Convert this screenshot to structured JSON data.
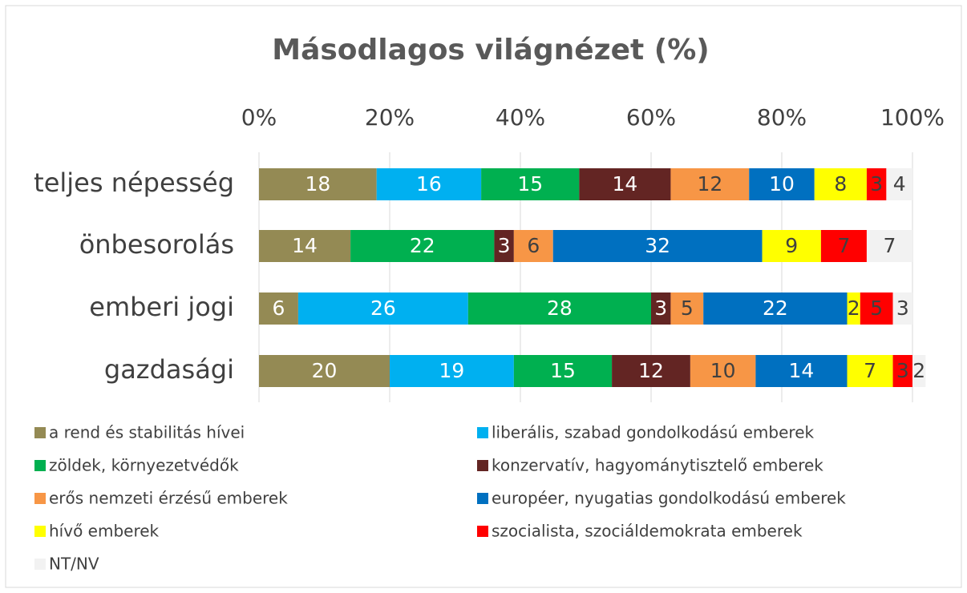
{
  "chart_data": {
    "type": "stacked-barh",
    "title": "Másodlagos világnézet (%)",
    "categories": [
      "teljes népesség",
      "önbesorolás",
      "emberi jogi",
      "gazdasági"
    ],
    "xlim": [
      0,
      100
    ],
    "xticks": [
      {
        "value": 0,
        "label": "0%"
      },
      {
        "value": 20,
        "label": "20%"
      },
      {
        "value": 40,
        "label": "40%"
      },
      {
        "value": 60,
        "label": "60%"
      },
      {
        "value": 80,
        "label": "80%"
      },
      {
        "value": 100,
        "label": "100%"
      }
    ],
    "grid": true,
    "legend": "bottom",
    "series": [
      {
        "name": "a rend és stabilitás hívei",
        "color": "#948a54",
        "label_color": "#ffffff",
        "values": [
          18,
          14,
          6,
          20
        ]
      },
      {
        "name": "liberális, szabad gondolkodású emberek",
        "color": "#00b0f0",
        "label_color": "#ffffff",
        "values": [
          16,
          null,
          26,
          19
        ]
      },
      {
        "name": "zöldek, környezetvédők",
        "color": "#00b050",
        "label_color": "#ffffff",
        "values": [
          15,
          22,
          28,
          15
        ]
      },
      {
        "name": "konzervatív, hagyománytisztelő emberek",
        "color": "#632523",
        "label_color": "#ffffff",
        "values": [
          14,
          3,
          3,
          12
        ]
      },
      {
        "name": "erős nemzeti érzésű emberek",
        "color": "#f79646",
        "label_color": "#404040",
        "values": [
          12,
          6,
          5,
          10
        ]
      },
      {
        "name": "européer, nyugatias gondolkodású emberek",
        "color": "#0070c0",
        "label_color": "#ffffff",
        "values": [
          10,
          32,
          22,
          14
        ]
      },
      {
        "name": "hívő emberek",
        "color": "#ffff00",
        "label_color": "#404040",
        "values": [
          8,
          9,
          2,
          7
        ]
      },
      {
        "name": "szocialista, szociáldemokrata emberek",
        "color": "#ff0000",
        "label_color": "#404040",
        "values": [
          3,
          7,
          5,
          3
        ]
      },
      {
        "name": "NT/NV",
        "color": "#f2f2f2",
        "label_color": "#404040",
        "values": [
          4,
          7,
          3,
          2
        ]
      }
    ]
  }
}
